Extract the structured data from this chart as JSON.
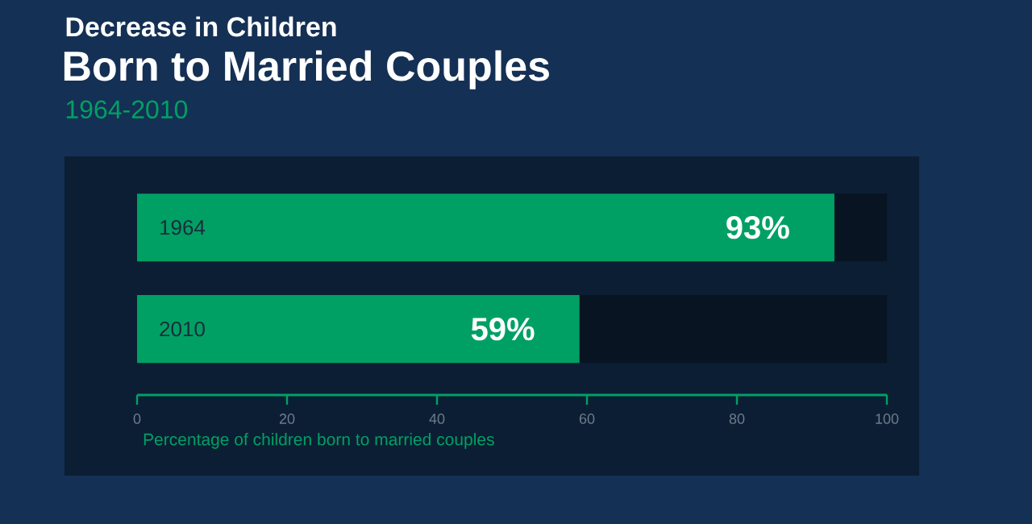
{
  "chart_data": {
    "type": "bar",
    "orientation": "horizontal",
    "title": "Decrease in Children",
    "subtitle": "Born to Married Couples",
    "annotations": [
      "1964-2010"
    ],
    "categories": [
      "1964",
      "2010"
    ],
    "values": [
      93,
      59
    ],
    "value_labels": [
      "93%",
      "59%"
    ],
    "color": "#00a064",
    "xlim": [
      0,
      100
    ],
    "xticks": [
      0,
      20,
      40,
      60,
      80,
      100
    ],
    "xlabel": "Percentage of children born to married couples"
  }
}
